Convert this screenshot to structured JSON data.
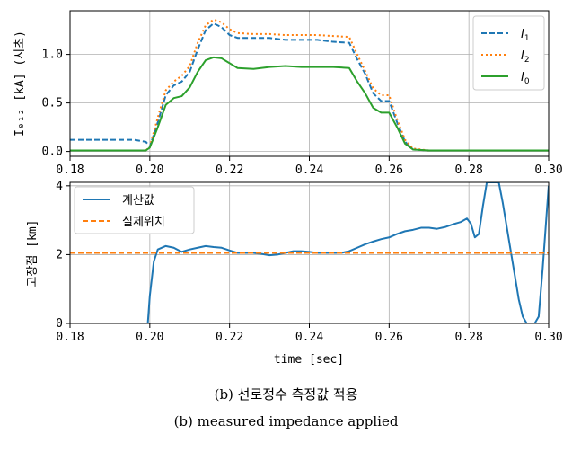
{
  "chart_data": [
    {
      "type": "line",
      "ylabel": "I₀₁₂ [kA] (시초)",
      "xlim": [
        0.18,
        0.3
      ],
      "ylim": [
        -0.05,
        1.45
      ],
      "xticks": [
        "0.18",
        "0.20",
        "0.22",
        "0.24",
        "0.26",
        "0.28",
        "0.30"
      ],
      "yticks": [
        "0.0",
        "0.5",
        "1.0"
      ],
      "grid": true,
      "legend_position": "top-right",
      "series": [
        {
          "name": "I1",
          "color": "#1f77b4",
          "style": "dashed",
          "x": [
            0.18,
            0.196,
            0.199,
            0.2,
            0.202,
            0.204,
            0.206,
            0.208,
            0.21,
            0.212,
            0.214,
            0.216,
            0.218,
            0.22,
            0.222,
            0.226,
            0.23,
            0.234,
            0.238,
            0.242,
            0.246,
            0.25,
            0.252,
            0.254,
            0.256,
            0.258,
            0.26,
            0.262,
            0.264,
            0.266,
            0.27,
            0.3
          ],
          "y": [
            0.12,
            0.12,
            0.1,
            0.05,
            0.3,
            0.58,
            0.68,
            0.72,
            0.82,
            1.05,
            1.25,
            1.32,
            1.28,
            1.2,
            1.17,
            1.17,
            1.17,
            1.15,
            1.15,
            1.15,
            1.13,
            1.12,
            0.95,
            0.8,
            0.6,
            0.52,
            0.52,
            0.3,
            0.1,
            0.02,
            0.01,
            0.01
          ]
        },
        {
          "name": "I2",
          "color": "#ff7f0e",
          "style": "dotted",
          "x": [
            0.18,
            0.199,
            0.2,
            0.202,
            0.204,
            0.206,
            0.208,
            0.21,
            0.212,
            0.214,
            0.216,
            0.218,
            0.22,
            0.222,
            0.226,
            0.23,
            0.234,
            0.238,
            0.242,
            0.246,
            0.25,
            0.252,
            0.254,
            0.256,
            0.258,
            0.26,
            0.262,
            0.264,
            0.266,
            0.27,
            0.3
          ],
          "y": [
            0.01,
            0.01,
            0.05,
            0.35,
            0.63,
            0.72,
            0.78,
            0.88,
            1.12,
            1.3,
            1.36,
            1.33,
            1.26,
            1.22,
            1.21,
            1.21,
            1.2,
            1.2,
            1.2,
            1.19,
            1.18,
            1.0,
            0.83,
            0.65,
            0.58,
            0.58,
            0.33,
            0.12,
            0.03,
            0.01,
            0.01
          ]
        },
        {
          "name": "I0",
          "color": "#2ca02c",
          "style": "solid",
          "x": [
            0.18,
            0.199,
            0.2,
            0.202,
            0.204,
            0.206,
            0.208,
            0.21,
            0.212,
            0.214,
            0.216,
            0.218,
            0.22,
            0.222,
            0.226,
            0.23,
            0.234,
            0.238,
            0.242,
            0.246,
            0.25,
            0.252,
            0.254,
            0.256,
            0.258,
            0.26,
            0.262,
            0.264,
            0.266,
            0.27,
            0.3
          ],
          "y": [
            0.01,
            0.01,
            0.04,
            0.25,
            0.48,
            0.55,
            0.57,
            0.66,
            0.82,
            0.94,
            0.97,
            0.96,
            0.91,
            0.86,
            0.85,
            0.87,
            0.88,
            0.87,
            0.87,
            0.87,
            0.86,
            0.72,
            0.6,
            0.45,
            0.4,
            0.4,
            0.25,
            0.08,
            0.02,
            0.01,
            0.01
          ]
        }
      ]
    },
    {
      "type": "line",
      "xlabel": "time [sec]",
      "ylabel": "고장점 [km]",
      "xlim": [
        0.18,
        0.3
      ],
      "ylim": [
        0,
        4.1
      ],
      "xticks": [
        "0.18",
        "0.20",
        "0.22",
        "0.24",
        "0.26",
        "0.28",
        "0.30"
      ],
      "yticks": [
        "0",
        "2",
        "4"
      ],
      "grid": true,
      "legend_position": "top-left",
      "series": [
        {
          "name": "계산값",
          "color": "#1f77b4",
          "style": "solid",
          "x": [
            0.1995,
            0.2,
            0.201,
            0.202,
            0.204,
            0.206,
            0.208,
            0.21,
            0.212,
            0.214,
            0.216,
            0.218,
            0.22,
            0.222,
            0.224,
            0.226,
            0.228,
            0.23,
            0.232,
            0.234,
            0.236,
            0.238,
            0.24,
            0.242,
            0.244,
            0.246,
            0.248,
            0.25,
            0.252,
            0.254,
            0.256,
            0.258,
            0.26,
            0.262,
            0.264,
            0.266,
            0.268,
            0.27,
            0.272,
            0.274,
            0.276,
            0.278,
            0.2795,
            0.2805,
            0.2815,
            0.2825,
            0.2835,
            0.2845,
            0.2855,
            0.2865,
            0.2875,
            0.2885,
            0.2895,
            0.2905,
            0.2915,
            0.2925,
            0.2935,
            0.2945,
            0.2955,
            0.2965,
            0.2975,
            0.2985,
            0.2995,
            0.3
          ],
          "y": [
            0,
            0.8,
            1.8,
            2.15,
            2.25,
            2.2,
            2.08,
            2.15,
            2.2,
            2.25,
            2.22,
            2.2,
            2.12,
            2.05,
            2.05,
            2.05,
            2.02,
            1.98,
            2.0,
            2.05,
            2.1,
            2.1,
            2.08,
            2.05,
            2.05,
            2.05,
            2.05,
            2.1,
            2.2,
            2.3,
            2.38,
            2.45,
            2.5,
            2.6,
            2.68,
            2.72,
            2.78,
            2.78,
            2.75,
            2.8,
            2.88,
            2.95,
            3.05,
            2.9,
            2.5,
            2.6,
            3.4,
            4.1,
            4.1,
            4.1,
            4.1,
            3.5,
            2.8,
            2.1,
            1.4,
            0.7,
            0.2,
            0,
            0,
            0,
            0.2,
            1.6,
            3.2,
            4.0
          ]
        },
        {
          "name": "실제위치",
          "color": "#ff7f0e",
          "style": "dashed",
          "x": [
            0.18,
            0.3
          ],
          "y": [
            2.05,
            2.05
          ]
        }
      ]
    }
  ],
  "legend": {
    "top": [
      "I1",
      "I2",
      "I0"
    ],
    "bottom": [
      "계산값",
      "실제위치"
    ]
  },
  "captions": {
    "korean": "(b) 선로정수 측정값 적용",
    "english": "(b) measured impedance applied"
  }
}
